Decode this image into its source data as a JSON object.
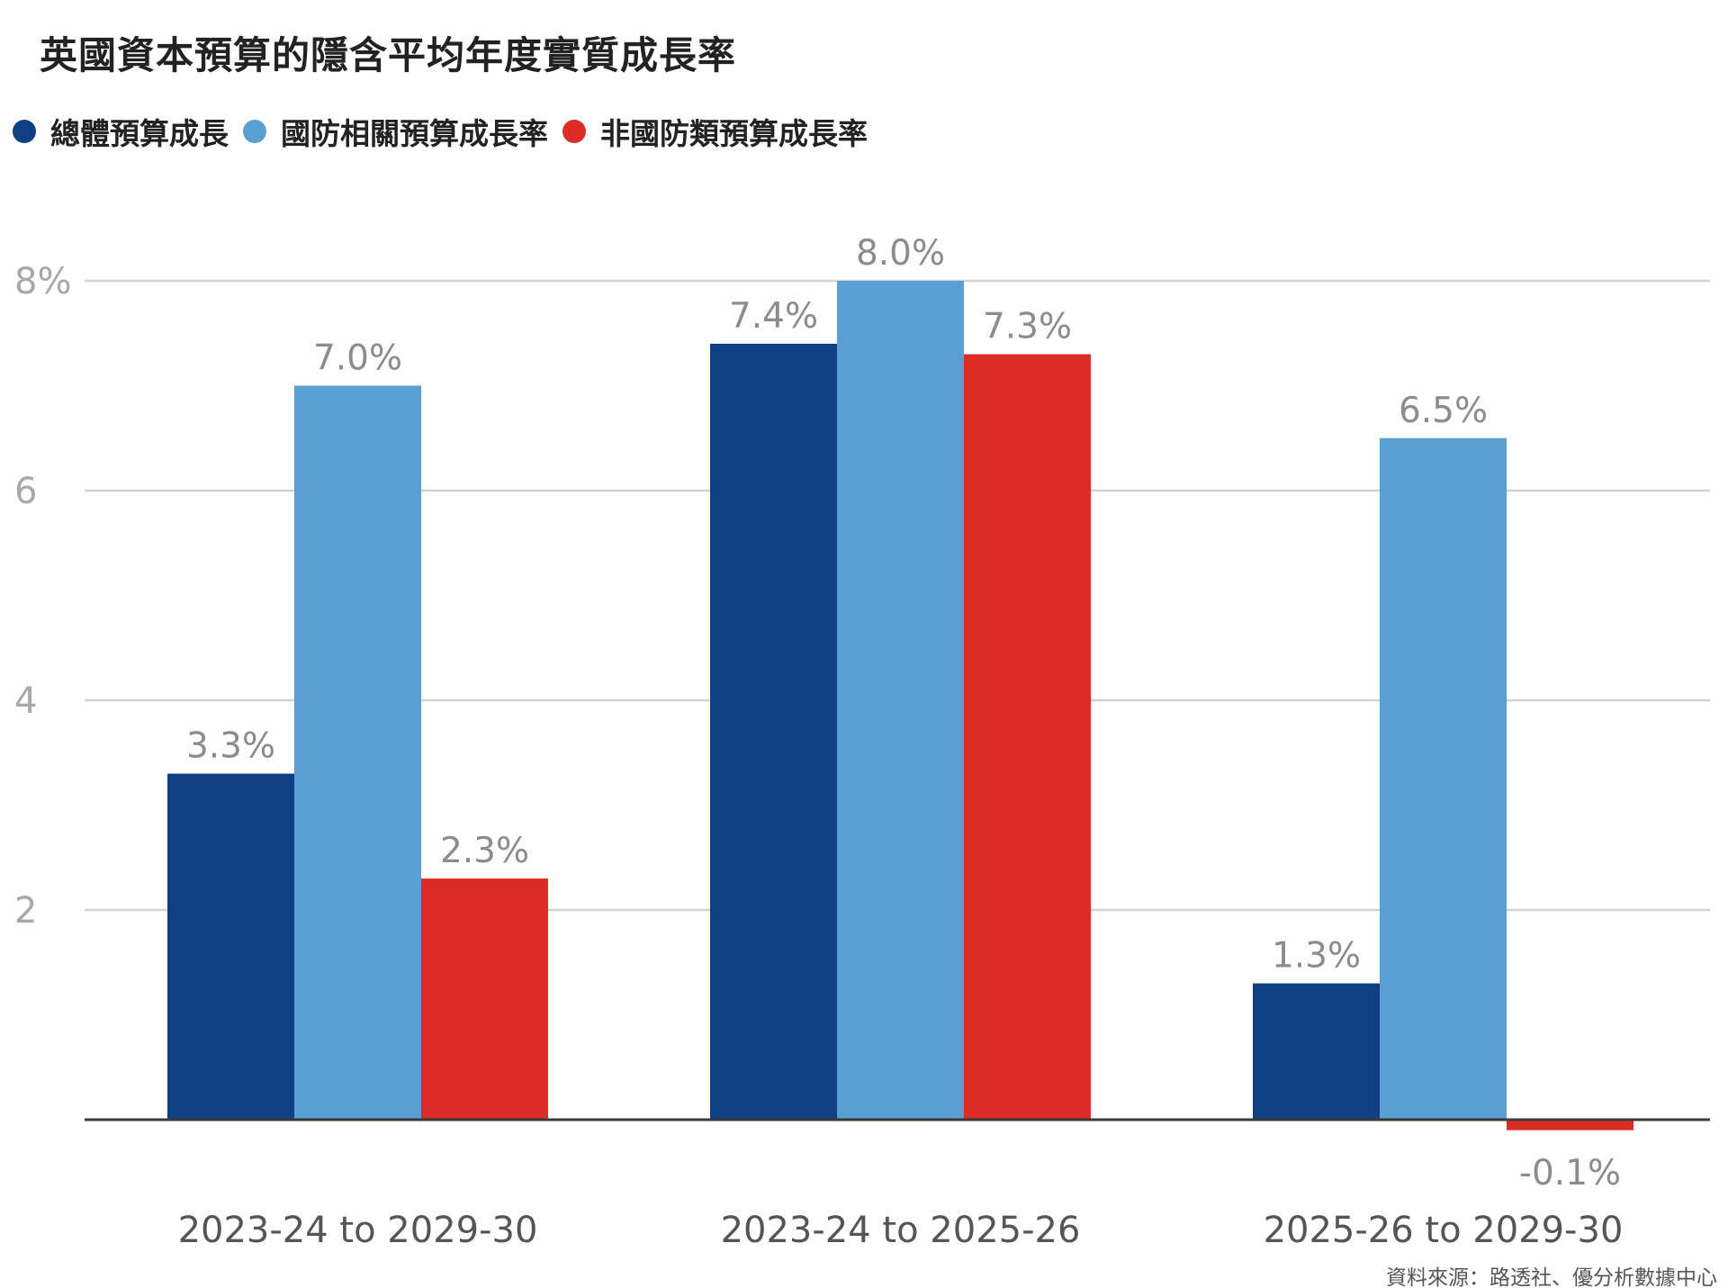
{
  "title": "英國資本預算的隱含平均年度實質成長率",
  "source": "資料來源：路透社、優分析數據中心",
  "colors": {
    "overall": "#0d3f82",
    "defense": "#5a9fd4",
    "non_defense": "#dc2c26",
    "grid": "#d2d2d2",
    "axis": "#3a3a3a",
    "tick_text": "#a8a8a8",
    "label_text": "#8c8c8c",
    "category_text": "#555555"
  },
  "legend": [
    {
      "label": "總體預算成長",
      "color": "#0d3f82",
      "icon": "circle-dot-icon"
    },
    {
      "label": "國防相關預算成長率",
      "color": "#5a9fd4",
      "icon": "circle-dot-icon"
    },
    {
      "label": "非國防類預算成長率",
      "color": "#dc2c26",
      "icon": "circle-dot-icon"
    }
  ],
  "chart_data": {
    "type": "bar",
    "title": "英國資本預算的隱含平均年度實質成長率",
    "xlabel": "",
    "ylabel": "",
    "ylim": [
      -0.4,
      8.0
    ],
    "yticks": [
      2,
      4,
      6,
      8
    ],
    "ytick_labels": [
      "2",
      "4",
      "6",
      "8%"
    ],
    "grid": true,
    "legend_position": "top-left",
    "categories": [
      "2023-24 to 2029-30",
      "2023-24 to 2025-26",
      "2025-26 to 2029-30"
    ],
    "series": [
      {
        "name": "總體預算成長",
        "values": [
          3.3,
          7.4,
          1.3
        ],
        "labels": [
          "3.3%",
          "7.4%",
          "1.3%"
        ]
      },
      {
        "name": "國防相關預算成長率",
        "values": [
          7.0,
          8.0,
          6.5
        ],
        "labels": [
          "7.0%",
          "8.0%",
          "6.5%"
        ]
      },
      {
        "name": "非國防類預算成長率",
        "values": [
          2.3,
          7.3,
          -0.1
        ],
        "labels": [
          "2.3%",
          "7.3%",
          "-0.1%"
        ]
      }
    ]
  }
}
